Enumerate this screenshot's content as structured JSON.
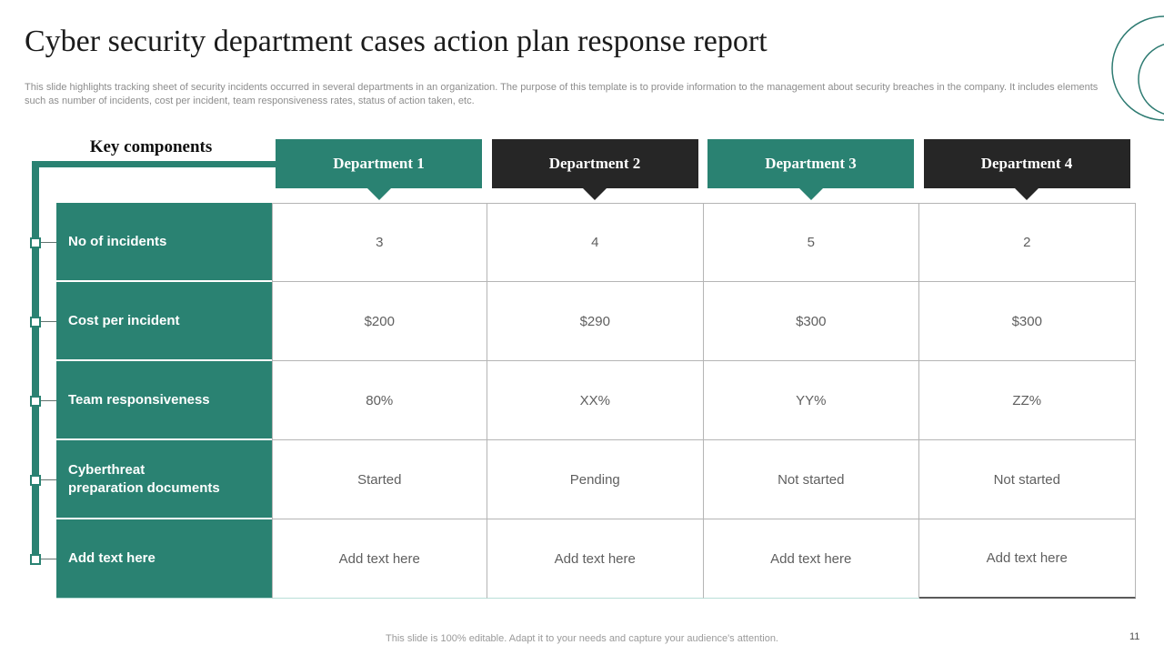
{
  "page": {
    "title": "Cyber security department cases action plan response report",
    "subtitle": "This slide highlights tracking sheet of security incidents occurred in several departments in an organization. The purpose of this template is to provide information to the management about security breaches in the company. It includes elements such as number of incidents, cost per incident, team responsiveness rates, status of action taken, etc.",
    "footer": "This slide is 100% editable. Adapt it to your needs and capture your audience's attention.",
    "page_number": "11"
  },
  "key_components_label": "Key components",
  "table": {
    "column_headers": [
      {
        "label": "Department 1",
        "style": "teal"
      },
      {
        "label": "Department 2",
        "style": "dark"
      },
      {
        "label": "Department 3",
        "style": "teal"
      },
      {
        "label": "Department 4",
        "style": "dark"
      }
    ],
    "rows": [
      {
        "label": "No of incidents",
        "values": [
          "3",
          "4",
          "5",
          "2"
        ]
      },
      {
        "label": "Cost per incident",
        "values": [
          "$200",
          "$290",
          "$300",
          "$300"
        ]
      },
      {
        "label": "Team responsiveness",
        "values": [
          "80%",
          "XX%",
          "YY%",
          "ZZ%"
        ]
      },
      {
        "label": "Cyberthreat\npreparation documents",
        "values": [
          "Started",
          "Pending",
          "Not started",
          "Not started"
        ]
      },
      {
        "label": "Add text here",
        "values": [
          "Add text here",
          "Add text here",
          "Add text here",
          "Add text here"
        ]
      }
    ]
  },
  "colors": {
    "teal": "#2a8272",
    "dark": "#262626",
    "circle_stroke": "#2e7b72"
  },
  "decoration": {
    "icon": "concentric-circles"
  }
}
